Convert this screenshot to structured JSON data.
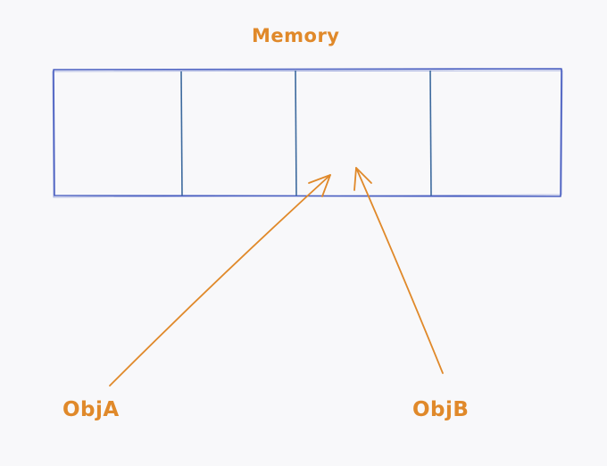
{
  "title": "Memory",
  "references": [
    {
      "label": "ObjA"
    },
    {
      "label": "ObjB"
    }
  ],
  "memory": {
    "cell_count": 4
  },
  "colors": {
    "memory_stroke": "#4a5fc1",
    "arrow_stroke": "#e0892a",
    "label_text": "#e0892a",
    "background": "#f8f8fa"
  }
}
